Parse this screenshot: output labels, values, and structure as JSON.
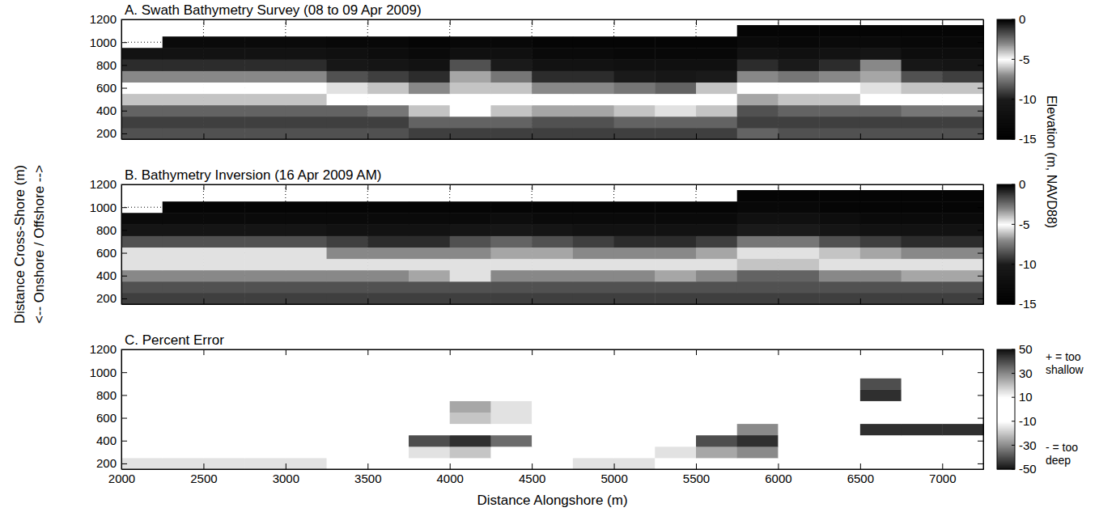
{
  "chart_data": [
    {
      "type": "heatmap",
      "title": "A. Swath Bathymetry Survey (08 to 09 Apr 2009)",
      "x": [
        2125,
        2375,
        2625,
        2875,
        3125,
        3375,
        3625,
        3875,
        4125,
        4375,
        4625,
        4875,
        5125,
        5375,
        5625,
        5875,
        6125,
        6375,
        6625,
        6875,
        7125
      ],
      "y": [
        200,
        300,
        400,
        500,
        600,
        700,
        800,
        900,
        1000,
        1100
      ],
      "z": [
        [
          -8.5,
          -8.5,
          -8.5,
          -8.5,
          -8.5,
          -8.5,
          -8.5,
          -9,
          -9,
          -9,
          -9,
          -9,
          -9,
          -9,
          -9,
          -8,
          -8.5,
          -8.5,
          -8.5,
          -8.5,
          -8.5
        ],
        [
          -9,
          -9,
          -9,
          -9,
          -9,
          -9,
          -9,
          -8,
          -8,
          -8,
          -8.5,
          -8.5,
          -8,
          -8,
          -8,
          -9,
          -9,
          -9,
          -9,
          -9,
          -9
        ],
        [
          -8,
          -8,
          -8,
          -8,
          -8,
          -8,
          -7.5,
          -6,
          -5,
          -6,
          -6.5,
          -6.5,
          -6,
          -5.5,
          -6,
          -8.5,
          -8,
          -8,
          -8,
          -7.5,
          -7.5
        ],
        [
          -6,
          -6,
          -6,
          -6,
          -6,
          -5,
          -5,
          -5,
          -5,
          -5,
          -5,
          -5,
          -5,
          -5,
          -5,
          -6.5,
          -6,
          -6,
          -5,
          -5,
          -5
        ],
        [
          -5,
          -5,
          -5,
          -5,
          -5,
          -5.5,
          -6,
          -7,
          -6,
          -6,
          -7,
          -7,
          -7.5,
          -8,
          -6,
          -5,
          -5,
          -5,
          -5.5,
          -6,
          -6
        ],
        [
          -7,
          -7,
          -7,
          -7,
          -7,
          -8.5,
          -9,
          -9.5,
          -6.5,
          -7.5,
          -9.5,
          -9.5,
          -10,
          -10.5,
          -10,
          -7,
          -7.5,
          -7,
          -6.5,
          -8.5,
          -9
        ],
        [
          -9.5,
          -9.5,
          -9.5,
          -9.5,
          -9.5,
          -10.5,
          -11,
          -11.5,
          -8.5,
          -10,
          -11.5,
          -11.5,
          -12,
          -12,
          -12,
          -9.5,
          -10,
          -9.5,
          -7,
          -10.5,
          -11
        ],
        [
          -11.5,
          -11.5,
          -11.5,
          -11.5,
          -11.5,
          -12,
          -12.5,
          -13,
          -12,
          -12,
          -13,
          -13,
          -13.5,
          -13.5,
          -13.5,
          -11.5,
          -12,
          -11.5,
          -11,
          -12.5,
          -12.5
        ],
        [
          null,
          -13,
          -13,
          -13,
          -13,
          -13.5,
          -13.5,
          -14,
          -13.5,
          -13.5,
          -14,
          -14,
          -14,
          -14,
          -14,
          -13,
          -13.5,
          -13,
          -13,
          -13.5,
          -13.5
        ],
        [
          null,
          null,
          null,
          null,
          null,
          null,
          null,
          null,
          null,
          null,
          null,
          null,
          null,
          null,
          null,
          -14,
          -14,
          -14,
          -14,
          -14,
          -14
        ]
      ],
      "xlim": [
        2000,
        7250
      ],
      "ylim": [
        150,
        1200
      ],
      "xticks": [
        2000,
        2500,
        3000,
        3500,
        4000,
        4500,
        5000,
        5500,
        6000,
        6500,
        7000
      ],
      "yticks": [
        200,
        400,
        600,
        800,
        1000,
        1200
      ],
      "grid": true,
      "tick_labels": "y",
      "colorbar": {
        "range": [
          -15,
          0
        ],
        "ticks": [
          0,
          -5,
          -10,
          -15
        ],
        "label": "Elevation (m, NAVD88)"
      }
    },
    {
      "type": "heatmap",
      "title": "B. Bathymetry Inversion (16 Apr 2009 AM)",
      "ylabel": "Distance Cross-Shore (m)",
      "ylabel_note": "<-- Onshore / Offshore -->",
      "x": [
        2125,
        2375,
        2625,
        2875,
        3125,
        3375,
        3625,
        3875,
        4125,
        4375,
        4625,
        4875,
        5125,
        5375,
        5625,
        5875,
        6125,
        6375,
        6625,
        6875,
        7125
      ],
      "y": [
        200,
        300,
        400,
        500,
        600,
        700,
        800,
        900,
        1000,
        1100
      ],
      "z": [
        [
          -9,
          -9,
          -9,
          -9,
          -9,
          -9,
          -9,
          -9,
          -9,
          -9,
          -9,
          -9,
          -9,
          -9,
          -9,
          -9,
          -9,
          -9,
          -9,
          -9,
          -9
        ],
        [
          -8.5,
          -8.5,
          -8.5,
          -8.5,
          -8.5,
          -8.5,
          -8.5,
          -8.5,
          -8.5,
          -8.5,
          -8.5,
          -8.5,
          -8.5,
          -8.5,
          -8.5,
          -8.5,
          -8.5,
          -8.5,
          -8.5,
          -8.5,
          -8.5
        ],
        [
          -7,
          -7,
          -7,
          -7,
          -7,
          -7,
          -7,
          -6.5,
          -5.5,
          -7,
          -7,
          -7,
          -7,
          -6.5,
          -7,
          -8,
          -8,
          -7,
          -7,
          -6.5,
          -6.5
        ],
        [
          -5.5,
          -5.5,
          -5.5,
          -5.5,
          -5.5,
          -5.5,
          -5.5,
          -5.5,
          -5.5,
          -5.5,
          -5.5,
          -5.5,
          -5.5,
          -5.5,
          -5.5,
          -6,
          -6,
          -5.5,
          -5.5,
          -5.5,
          -5.5
        ],
        [
          -5.5,
          -5.5,
          -5.5,
          -5.5,
          -5.5,
          -7,
          -7,
          -7,
          -7,
          -6.5,
          -6.5,
          -7,
          -7,
          -7,
          -6.5,
          -5.5,
          -5.5,
          -6,
          -6.5,
          -7,
          -7
        ],
        [
          -8.5,
          -8.5,
          -8.5,
          -8.5,
          -8.5,
          -9,
          -9.5,
          -9.5,
          -8.5,
          -8,
          -8.5,
          -9,
          -9.5,
          -9.5,
          -9,
          -7.5,
          -7.5,
          -8.5,
          -9,
          -9.5,
          -9.5
        ],
        [
          -11,
          -11,
          -11,
          -11,
          -11,
          -11.5,
          -11.5,
          -11.5,
          -11,
          -10.5,
          -11,
          -11.5,
          -11.5,
          -11.5,
          -11.5,
          -10,
          -10,
          -11,
          -11.5,
          -11.5,
          -11.5
        ],
        [
          -13,
          -13,
          -13,
          -13,
          -13,
          -13,
          -13,
          -13,
          -13,
          -12.5,
          -13,
          -13,
          -13,
          -13,
          -13,
          -12,
          -12,
          -12.5,
          -13,
          -13,
          -13
        ],
        [
          null,
          -14,
          -14,
          -14,
          -14,
          -14,
          -14,
          -14,
          -14,
          -14,
          -14,
          -14,
          -14,
          -14,
          -14,
          -13.5,
          -13.5,
          -14,
          -14,
          -14,
          -14
        ],
        [
          null,
          null,
          null,
          null,
          null,
          null,
          null,
          null,
          null,
          null,
          null,
          null,
          null,
          null,
          null,
          -14,
          -14,
          -14,
          -14,
          -14,
          -14
        ]
      ],
      "xlim": [
        2000,
        7250
      ],
      "ylim": [
        150,
        1200
      ],
      "xticks": [
        2000,
        2500,
        3000,
        3500,
        4000,
        4500,
        5000,
        5500,
        6000,
        6500,
        7000
      ],
      "yticks": [
        200,
        400,
        600,
        800,
        1000,
        1200
      ],
      "grid": true,
      "tick_labels": "y",
      "colorbar": {
        "range": [
          -15,
          0
        ],
        "ticks": [
          0,
          -5,
          -10,
          -15
        ]
      }
    },
    {
      "type": "heatmap",
      "title": "C. Percent Error",
      "xlabel": "Distance Alongshore (m)",
      "x": [
        2125,
        2375,
        2625,
        2875,
        3125,
        3375,
        3625,
        3875,
        4125,
        4375,
        4625,
        4875,
        5125,
        5375,
        5625,
        5875,
        6125,
        6375,
        6625,
        6875,
        7125
      ],
      "y": [
        200,
        300,
        400,
        500,
        600,
        700,
        800,
        900,
        1000,
        1100
      ],
      "z": [
        [
          -15,
          -15,
          -15,
          -15,
          -15,
          -8,
          -5,
          -5,
          -5,
          -5,
          -5,
          -15,
          -15,
          -5,
          -5,
          -8,
          -5,
          -5,
          -5,
          -5,
          -5
        ],
        [
          10,
          10,
          10,
          10,
          10,
          10,
          8,
          -15,
          -20,
          -10,
          5,
          5,
          5,
          -15,
          -25,
          -30,
          -5,
          5,
          5,
          5,
          5
        ],
        [
          5,
          5,
          5,
          5,
          5,
          5,
          0,
          -40,
          -45,
          -35,
          -10,
          0,
          0,
          -10,
          -40,
          -45,
          -10,
          0,
          0,
          0,
          0
        ],
        [
          0,
          0,
          0,
          0,
          0,
          5,
          0,
          0,
          5,
          0,
          0,
          0,
          0,
          0,
          5,
          30,
          10,
          5,
          -45,
          -45,
          -45
        ],
        [
          0,
          0,
          0,
          0,
          0,
          -5,
          -5,
          5,
          20,
          15,
          5,
          0,
          0,
          0,
          5,
          5,
          0,
          0,
          -10,
          -5,
          -5
        ],
        [
          0,
          0,
          0,
          0,
          0,
          0,
          0,
          5,
          25,
          15,
          5,
          0,
          0,
          0,
          0,
          0,
          0,
          5,
          5,
          0,
          0
        ],
        [
          0,
          0,
          0,
          0,
          0,
          0,
          0,
          0,
          10,
          5,
          0,
          0,
          0,
          0,
          0,
          0,
          0,
          5,
          45,
          0,
          0
        ],
        [
          0,
          0,
          0,
          0,
          0,
          0,
          0,
          0,
          5,
          0,
          0,
          0,
          0,
          0,
          0,
          0,
          0,
          0,
          40,
          0,
          0
        ],
        [
          null,
          0,
          0,
          0,
          0,
          0,
          0,
          0,
          0,
          0,
          0,
          0,
          0,
          0,
          0,
          0,
          0,
          0,
          0,
          0,
          0
        ],
        [
          null,
          null,
          null,
          null,
          null,
          null,
          null,
          null,
          null,
          null,
          null,
          null,
          null,
          null,
          null,
          0,
          0,
          0,
          0,
          0,
          0
        ]
      ],
      "xlim": [
        2000,
        7250
      ],
      "ylim": [
        150,
        1200
      ],
      "xticks": [
        2000,
        2500,
        3000,
        3500,
        4000,
        4500,
        5000,
        5500,
        6000,
        6500,
        7000
      ],
      "yticks": [
        200,
        400,
        600,
        800,
        1000,
        1200
      ],
      "colorbar": {
        "range": [
          -50,
          50
        ],
        "ticks": [
          50,
          30,
          10,
          -10,
          -30,
          -50
        ],
        "annotations": [
          "+ = too shallow",
          "- = too deep"
        ]
      }
    }
  ]
}
